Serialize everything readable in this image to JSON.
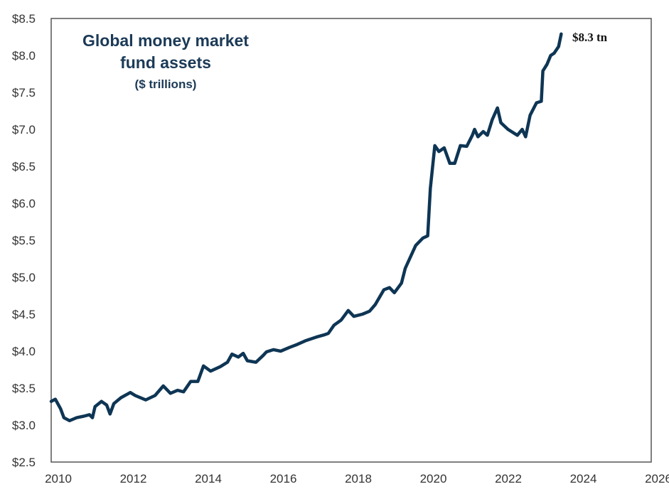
{
  "chart_data": {
    "type": "line",
    "title": "Global money market fund assets",
    "title_lines": [
      "Global money market",
      "fund assets"
    ],
    "subtitle": "($ trillions)",
    "xlabel": "",
    "ylabel": "",
    "xlim": [
      2010,
      2026
    ],
    "ylim": [
      2.5,
      8.5
    ],
    "x_ticks": [
      "2010",
      "2012",
      "2014",
      "2016",
      "2018",
      "2020",
      "2022",
      "2024",
      "2026"
    ],
    "y_ticks": [
      "$8.5",
      "$8.0",
      "$7.5",
      "$7.0",
      "$6.5",
      "$6.0",
      "$5.5",
      "$5.0",
      "$4.5",
      "$4.0",
      "$3.5",
      "$3.0",
      "$2.5"
    ],
    "grid": false,
    "line_color": "#0e3554",
    "annotation": "$8.3 tn",
    "series": [
      {
        "name": "Global money market fund assets",
        "points": [
          [
            2010.0,
            3.32
          ],
          [
            2010.11,
            3.35
          ],
          [
            2010.25,
            3.22
          ],
          [
            2010.34,
            3.1
          ],
          [
            2010.49,
            3.06
          ],
          [
            2010.68,
            3.1
          ],
          [
            2010.87,
            3.12
          ],
          [
            2011.02,
            3.14
          ],
          [
            2011.1,
            3.1
          ],
          [
            2011.17,
            3.25
          ],
          [
            2011.34,
            3.32
          ],
          [
            2011.48,
            3.27
          ],
          [
            2011.57,
            3.15
          ],
          [
            2011.67,
            3.29
          ],
          [
            2011.86,
            3.37
          ],
          [
            2012.11,
            3.44
          ],
          [
            2012.24,
            3.4
          ],
          [
            2012.52,
            3.34
          ],
          [
            2012.77,
            3.4
          ],
          [
            2012.99,
            3.53
          ],
          [
            2013.18,
            3.43
          ],
          [
            2013.37,
            3.47
          ],
          [
            2013.53,
            3.45
          ],
          [
            2013.72,
            3.59
          ],
          [
            2013.91,
            3.59
          ],
          [
            2014.06,
            3.8
          ],
          [
            2014.25,
            3.73
          ],
          [
            2014.51,
            3.79
          ],
          [
            2014.7,
            3.85
          ],
          [
            2014.82,
            3.96
          ],
          [
            2014.99,
            3.92
          ],
          [
            2015.12,
            3.97
          ],
          [
            2015.23,
            3.87
          ],
          [
            2015.46,
            3.85
          ],
          [
            2015.65,
            3.94
          ],
          [
            2015.74,
            3.99
          ],
          [
            2015.93,
            4.02
          ],
          [
            2016.12,
            4.0
          ],
          [
            2016.35,
            4.05
          ],
          [
            2016.56,
            4.09
          ],
          [
            2016.78,
            4.14
          ],
          [
            2017.07,
            4.19
          ],
          [
            2017.28,
            4.22
          ],
          [
            2017.39,
            4.24
          ],
          [
            2017.54,
            4.35
          ],
          [
            2017.73,
            4.42
          ],
          [
            2017.92,
            4.55
          ],
          [
            2018.07,
            4.47
          ],
          [
            2018.3,
            4.5
          ],
          [
            2018.49,
            4.54
          ],
          [
            2018.64,
            4.63
          ],
          [
            2018.87,
            4.83
          ],
          [
            2019.02,
            4.86
          ],
          [
            2019.15,
            4.79
          ],
          [
            2019.34,
            4.92
          ],
          [
            2019.44,
            5.12
          ],
          [
            2019.72,
            5.43
          ],
          [
            2019.91,
            5.53
          ],
          [
            2020.04,
            5.56
          ],
          [
            2020.11,
            6.2
          ],
          [
            2020.23,
            6.78
          ],
          [
            2020.34,
            6.7
          ],
          [
            2020.48,
            6.75
          ],
          [
            2020.63,
            6.54
          ],
          [
            2020.76,
            6.54
          ],
          [
            2020.91,
            6.78
          ],
          [
            2021.08,
            6.77
          ],
          [
            2021.23,
            6.92
          ],
          [
            2021.29,
            7.0
          ],
          [
            2021.38,
            6.9
          ],
          [
            2021.52,
            6.97
          ],
          [
            2021.63,
            6.92
          ],
          [
            2021.76,
            7.13
          ],
          [
            2021.9,
            7.29
          ],
          [
            2021.99,
            7.09
          ],
          [
            2022.18,
            7.0
          ],
          [
            2022.43,
            6.92
          ],
          [
            2022.56,
            7.0
          ],
          [
            2022.65,
            6.9
          ],
          [
            2022.77,
            7.19
          ],
          [
            2022.94,
            7.36
          ],
          [
            2023.07,
            7.38
          ],
          [
            2023.11,
            7.79
          ],
          [
            2023.22,
            7.88
          ],
          [
            2023.32,
            8.0
          ],
          [
            2023.41,
            8.03
          ],
          [
            2023.53,
            8.12
          ],
          [
            2023.6,
            8.29
          ]
        ]
      }
    ]
  }
}
